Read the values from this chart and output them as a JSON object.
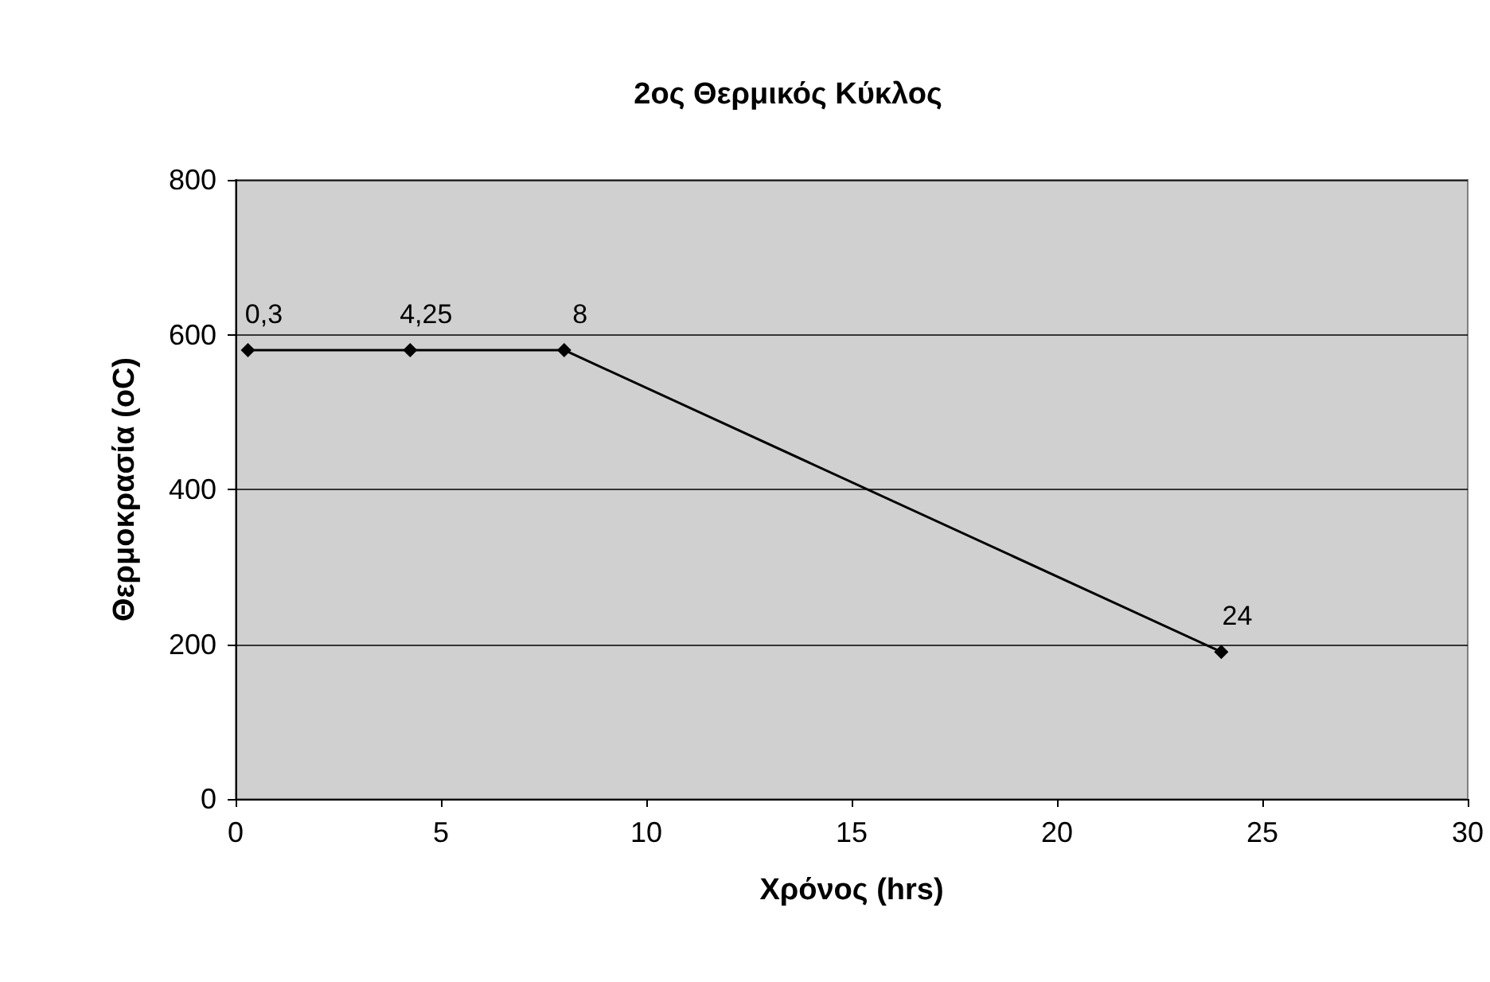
{
  "chart_data": {
    "type": "line",
    "title": "2ος Θερμικός Κύκλος",
    "xlabel": "Χρόνος (hrs)",
    "ylabel": "Θερμοκρασία (oC)",
    "x": [
      0.3,
      4.25,
      8,
      24
    ],
    "series": [
      {
        "color": "#000000",
        "values": [
          580,
          580,
          580,
          190
        ]
      }
    ],
    "annotations": [
      {
        "text": "0,3",
        "x": 0.3,
        "y": 580
      },
      {
        "text": "4,25",
        "x": 4.25,
        "y": 580
      },
      {
        "text": "8",
        "x": 8,
        "y": 580
      },
      {
        "text": "24",
        "x": 24,
        "y": 190
      }
    ],
    "xlim": [
      0,
      30
    ],
    "xticks": [
      0,
      5,
      10,
      15,
      20,
      25,
      30
    ],
    "ylim": [
      0,
      800
    ],
    "yticks": [
      0,
      200,
      400,
      600,
      800
    ],
    "grid": "y",
    "marker": "diamond",
    "line_style": "solid"
  }
}
